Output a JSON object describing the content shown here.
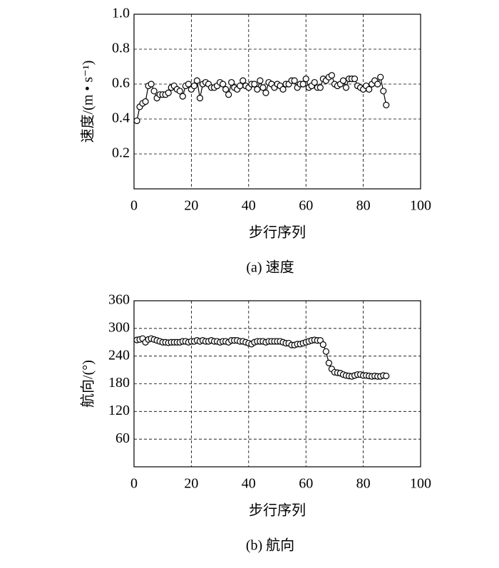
{
  "chart_data": [
    {
      "type": "line",
      "caption": "(a) 速度",
      "x_label": "步行序列",
      "y_label": "速度/(m • s⁻¹)",
      "x": [
        1,
        2,
        3,
        4,
        5,
        6,
        7,
        8,
        9,
        10,
        11,
        12,
        13,
        14,
        15,
        16,
        17,
        18,
        19,
        20,
        21,
        22,
        23,
        24,
        25,
        26,
        27,
        28,
        29,
        30,
        31,
        32,
        33,
        34,
        35,
        36,
        37,
        38,
        39,
        40,
        41,
        42,
        43,
        44,
        45,
        46,
        47,
        48,
        49,
        50,
        51,
        52,
        53,
        54,
        55,
        56,
        57,
        58,
        59,
        60,
        61,
        62,
        63,
        64,
        65,
        66,
        67,
        68,
        69,
        70,
        71,
        72,
        73,
        74,
        75,
        76,
        77,
        78,
        79,
        80,
        81,
        82,
        83,
        84,
        85,
        86,
        87,
        88
      ],
      "series": [
        {
          "color": "#000000",
          "values": [
            0.39,
            0.47,
            0.49,
            0.5,
            0.59,
            0.6,
            0.56,
            0.52,
            0.54,
            0.54,
            0.54,
            0.55,
            0.58,
            0.59,
            0.57,
            0.56,
            0.53,
            0.59,
            0.6,
            0.57,
            0.59,
            0.62,
            0.52,
            0.6,
            0.61,
            0.6,
            0.58,
            0.58,
            0.59,
            0.61,
            0.6,
            0.57,
            0.54,
            0.61,
            0.58,
            0.57,
            0.59,
            0.62,
            0.59,
            0.58,
            0.6,
            0.6,
            0.57,
            0.62,
            0.58,
            0.55,
            0.61,
            0.6,
            0.58,
            0.6,
            0.59,
            0.57,
            0.6,
            0.6,
            0.62,
            0.62,
            0.58,
            0.6,
            0.6,
            0.63,
            0.58,
            0.59,
            0.61,
            0.58,
            0.58,
            0.63,
            0.62,
            0.64,
            0.65,
            0.6,
            0.59,
            0.6,
            0.62,
            0.58,
            0.63,
            0.63,
            0.63,
            0.59,
            0.58,
            0.57,
            0.59,
            0.57,
            0.6,
            0.62,
            0.6,
            0.64,
            0.56,
            0.48
          ]
        }
      ],
      "xlim": [
        0,
        100
      ],
      "xticks": [
        0,
        20,
        40,
        60,
        80,
        100
      ],
      "ylim": [
        0,
        1
      ],
      "yticks": [
        {
          "value": 0.2,
          "label": "0.2"
        },
        {
          "value": 0.4,
          "label": "0.4"
        },
        {
          "value": 0.6,
          "label": "0.6"
        },
        {
          "value": 0.8,
          "label": "0.8"
        },
        {
          "value": 1,
          "label": "1.0"
        }
      ],
      "grid": true
    },
    {
      "type": "line",
      "caption": "(b) 航向",
      "x_label": "步行序列",
      "y_label": "航向/(°)",
      "x": [
        1,
        2,
        3,
        4,
        5,
        6,
        7,
        8,
        9,
        10,
        11,
        12,
        13,
        14,
        15,
        16,
        17,
        18,
        19,
        20,
        21,
        22,
        23,
        24,
        25,
        26,
        27,
        28,
        29,
        30,
        31,
        32,
        33,
        34,
        35,
        36,
        37,
        38,
        39,
        40,
        41,
        42,
        43,
        44,
        45,
        46,
        47,
        48,
        49,
        50,
        51,
        52,
        53,
        54,
        55,
        56,
        57,
        58,
        59,
        60,
        61,
        62,
        63,
        64,
        65,
        66,
        67,
        68,
        69,
        70,
        71,
        72,
        73,
        74,
        75,
        76,
        77,
        78,
        79,
        80,
        81,
        82,
        83,
        84,
        85,
        86,
        87,
        88
      ],
      "series": [
        {
          "color": "#000000",
          "values": [
            275,
            276,
            278,
            270,
            276,
            278,
            276,
            274,
            272,
            270,
            270,
            269,
            270,
            270,
            270,
            270,
            272,
            272,
            270,
            272,
            272,
            274,
            272,
            274,
            272,
            272,
            274,
            272,
            272,
            270,
            272,
            272,
            270,
            274,
            274,
            274,
            272,
            272,
            270,
            268,
            266,
            270,
            272,
            272,
            272,
            270,
            272,
            272,
            272,
            272,
            272,
            270,
            268,
            268,
            264,
            264,
            266,
            266,
            268,
            270,
            272,
            274,
            275,
            274,
            274,
            265,
            250,
            225,
            212,
            205,
            204,
            203,
            200,
            198,
            197,
            196,
            198,
            200,
            200,
            198,
            198,
            197,
            196,
            197,
            196,
            196,
            198,
            197
          ]
        }
      ],
      "xlim": [
        0,
        100
      ],
      "xticks": [
        0,
        20,
        40,
        60,
        80,
        100
      ],
      "ylim": [
        0,
        360
      ],
      "yticks": [
        60,
        120,
        180,
        240,
        300,
        360
      ],
      "grid": true
    }
  ]
}
